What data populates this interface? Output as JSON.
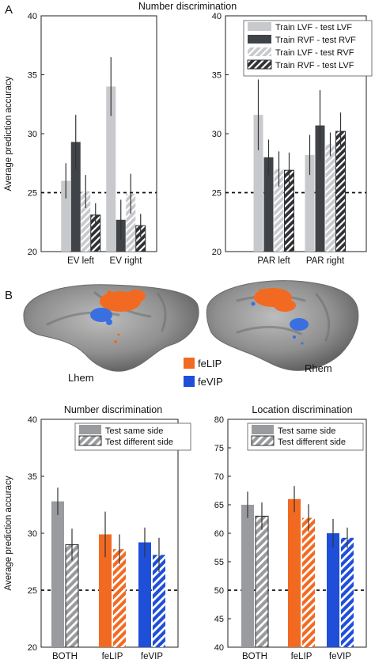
{
  "panel_labels": {
    "a": "A",
    "b": "B"
  },
  "brain": {
    "left_label": "Lhem",
    "right_label": "Rhem",
    "legend": [
      {
        "label": "feLIP",
        "color": "#f26a21"
      },
      {
        "label": "feVIP",
        "color": "#2456d6"
      }
    ]
  },
  "colors": {
    "light_gray": "#c7c9cc",
    "dark_gray": "#404347",
    "both_gray": "#999b9e",
    "felip_orange": "#f26a21",
    "fevip_blue": "#1f4fd9"
  },
  "chart_data": [
    {
      "id": "a_left",
      "type": "bar",
      "title": "Number discrimination",
      "ylabel": "Average prediction accuracy",
      "ylim": [
        20,
        40
      ],
      "yticks": [
        20,
        25,
        30,
        35,
        40
      ],
      "chance": 25,
      "categories": [
        "EV left",
        "EV right"
      ],
      "series": [
        {
          "name": "Train LVF - test LVF",
          "style": "solid-light",
          "values": [
            26.0,
            34.0
          ],
          "errors": [
            1.5,
            2.5
          ]
        },
        {
          "name": "Train RVF - test RVF",
          "style": "solid-dark",
          "values": [
            29.3,
            22.7
          ],
          "errors": [
            2.3,
            1.7
          ]
        },
        {
          "name": "Train LVF - test RVF",
          "style": "hatch-light",
          "values": [
            25.1,
            24.9
          ],
          "errors": [
            1.4,
            1.7
          ]
        },
        {
          "name": "Train RVF - test LVF",
          "style": "hatch-dark",
          "values": [
            23.1,
            22.2
          ],
          "errors": [
            1.0,
            1.0
          ]
        }
      ]
    },
    {
      "id": "a_right",
      "type": "bar",
      "title": "",
      "ylabel": "",
      "ylim": [
        20,
        40
      ],
      "yticks": [
        20,
        25,
        30,
        35,
        40
      ],
      "chance": 25,
      "categories": [
        "PAR left",
        "PAR right"
      ],
      "legend": [
        "Train LVF - test LVF",
        "Train RVF - test RVF",
        "Train LVF - test RVF",
        "Train RVF - test LVF"
      ],
      "series": [
        {
          "name": "Train LVF - test LVF",
          "style": "solid-light",
          "values": [
            31.6,
            28.2
          ],
          "errors": [
            3.0,
            1.7
          ]
        },
        {
          "name": "Train RVF - test RVF",
          "style": "solid-dark",
          "values": [
            28.0,
            30.7
          ],
          "errors": [
            1.5,
            3.0
          ]
        },
        {
          "name": "Train LVF - test RVF",
          "style": "hatch-light",
          "values": [
            27.0,
            29.1
          ],
          "errors": [
            1.5,
            1.0
          ]
        },
        {
          "name": "Train RVF - test LVF",
          "style": "hatch-dark",
          "values": [
            26.9,
            30.2
          ],
          "errors": [
            1.5,
            1.6
          ]
        }
      ]
    },
    {
      "id": "b_left",
      "type": "bar",
      "title": "Number discrimination",
      "ylabel": "Average prediction accuracy",
      "ylim": [
        20,
        40
      ],
      "yticks": [
        20,
        25,
        30,
        35,
        40
      ],
      "chance": 25,
      "categories": [
        "BOTH",
        "feLIP",
        "feVIP"
      ],
      "legend": [
        "Test same side",
        "Test different side"
      ],
      "series": [
        {
          "name": "Test same side",
          "style": "solid",
          "values": [
            32.8,
            29.9,
            29.2
          ],
          "errors": [
            1.2,
            2.0,
            1.3
          ]
        },
        {
          "name": "Test different side",
          "style": "hatch",
          "values": [
            29.0,
            28.6,
            28.1
          ],
          "errors": [
            1.4,
            1.3,
            1.5
          ]
        }
      ]
    },
    {
      "id": "b_right",
      "type": "bar",
      "title": "Location discrimination",
      "ylabel": "",
      "ylim": [
        40,
        80
      ],
      "yticks": [
        40,
        45,
        50,
        55,
        60,
        65,
        70,
        75,
        80
      ],
      "chance": 50,
      "categories": [
        "BOTH",
        "feLIP",
        "feVIP"
      ],
      "legend": [
        "Test same side",
        "Test different side"
      ],
      "series": [
        {
          "name": "Test same side",
          "style": "solid",
          "values": [
            65.0,
            66.0,
            60.0
          ],
          "errors": [
            2.3,
            2.3,
            2.5
          ]
        },
        {
          "name": "Test different side",
          "style": "hatch",
          "values": [
            63.0,
            62.7,
            59.2
          ],
          "errors": [
            2.4,
            2.4,
            1.8
          ]
        }
      ]
    }
  ]
}
